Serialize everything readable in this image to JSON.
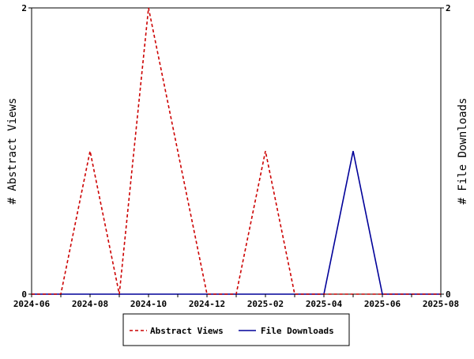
{
  "chart_data": {
    "type": "line",
    "title": "",
    "xlabel": "",
    "ylabel_left": "# Abstract Views",
    "ylabel_right": "# File Downloads",
    "x_ticks": [
      "2024-06",
      "2024-08",
      "2024-10",
      "2024-12",
      "2025-02",
      "2025-04",
      "2025-06",
      "2025-08"
    ],
    "xlim": [
      "2024-06-01",
      "2025-08-01"
    ],
    "ylim_left": [
      0,
      2
    ],
    "ylim_right": [
      0,
      2
    ],
    "y_ticks_left": [
      "0",
      "2"
    ],
    "y_ticks_right": [
      "0",
      "2"
    ],
    "grid": false,
    "legend_position": "bottom-center",
    "series": [
      {
        "name": "Abstract Views",
        "axis": "left",
        "color": "#cc0000",
        "line_style": "dashed",
        "points": [
          {
            "x": "2024-06-01",
            "y": 0
          },
          {
            "x": "2024-07-01",
            "y": 0
          },
          {
            "x": "2024-08-01",
            "y": 1
          },
          {
            "x": "2024-09-01",
            "y": 0
          },
          {
            "x": "2024-10-01",
            "y": 2
          },
          {
            "x": "2024-11-01",
            "y": 1
          },
          {
            "x": "2024-12-01",
            "y": 0
          },
          {
            "x": "2025-01-01",
            "y": 0
          },
          {
            "x": "2025-02-01",
            "y": 1
          },
          {
            "x": "2025-03-01",
            "y": 0
          },
          {
            "x": "2025-04-01",
            "y": 0
          },
          {
            "x": "2025-05-01",
            "y": 0
          },
          {
            "x": "2025-06-01",
            "y": 0
          },
          {
            "x": "2025-07-01",
            "y": 0
          },
          {
            "x": "2025-08-01",
            "y": 0
          }
        ]
      },
      {
        "name": "File Downloads",
        "axis": "right",
        "color": "#000099",
        "line_style": "solid",
        "points": [
          {
            "x": "2024-06-01",
            "y": 0
          },
          {
            "x": "2024-07-01",
            "y": 0
          },
          {
            "x": "2024-08-01",
            "y": 0
          },
          {
            "x": "2024-09-01",
            "y": 0
          },
          {
            "x": "2024-10-01",
            "y": 0
          },
          {
            "x": "2024-11-01",
            "y": 0
          },
          {
            "x": "2024-12-01",
            "y": 0
          },
          {
            "x": "2025-01-01",
            "y": 0
          },
          {
            "x": "2025-02-01",
            "y": 0
          },
          {
            "x": "2025-03-01",
            "y": 0
          },
          {
            "x": "2025-04-01",
            "y": 0
          },
          {
            "x": "2025-05-01",
            "y": 1
          },
          {
            "x": "2025-06-01",
            "y": 0
          },
          {
            "x": "2025-07-01",
            "y": 0
          },
          {
            "x": "2025-08-01",
            "y": 0
          }
        ]
      }
    ],
    "legend": [
      "Abstract Views",
      "File Downloads"
    ]
  }
}
